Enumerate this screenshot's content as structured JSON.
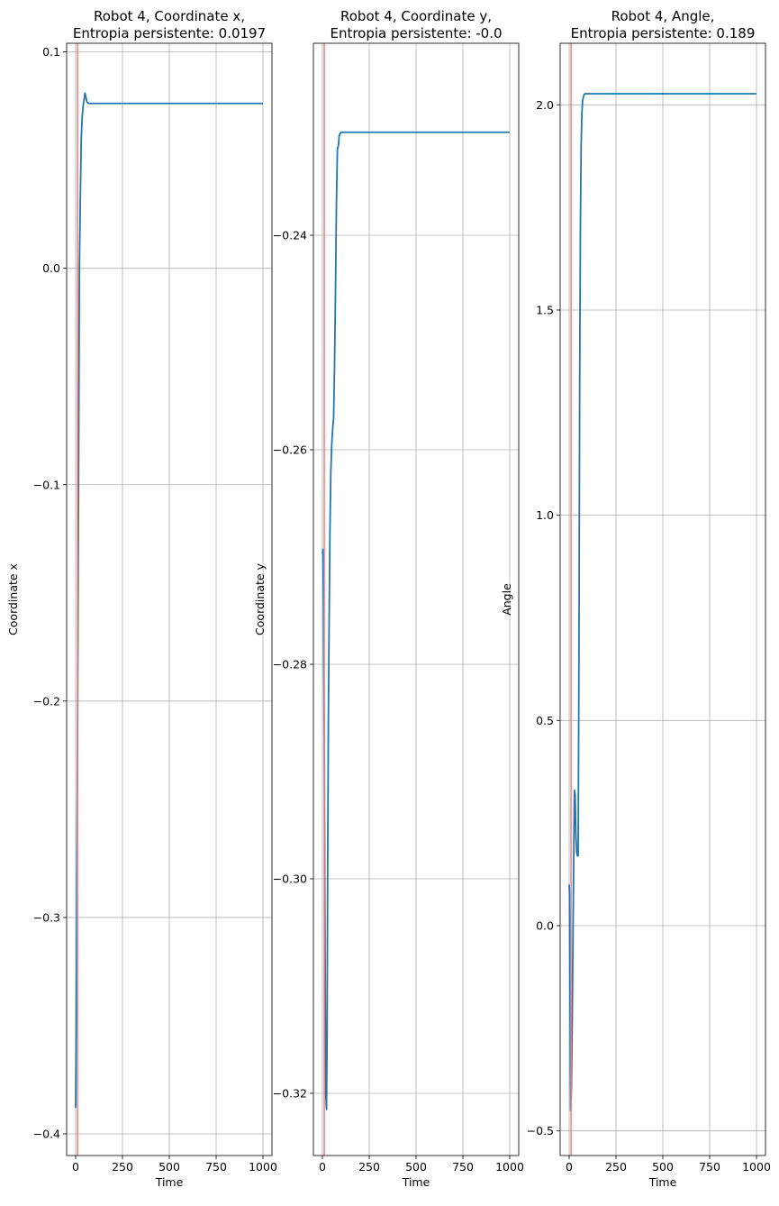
{
  "chart_data": [
    {
      "type": "line",
      "title_line1": "Robot 4, Coordinate x,",
      "title_line2": "Entropia persistente: 0.0197",
      "xlabel": "Time",
      "ylabel": "Coordinate x",
      "xlim": [
        -48,
        1048
      ],
      "ylim": [
        -0.41,
        0.104
      ],
      "xticks": [
        0,
        250,
        500,
        750,
        1000
      ],
      "xtick_labels": [
        "0",
        "250",
        "500",
        "750",
        "1000"
      ],
      "yticks": [
        -0.4,
        -0.3,
        -0.2,
        -0.1,
        0.0,
        0.1
      ],
      "ytick_labels": [
        "−0.4",
        "−0.3",
        "−0.2",
        "−0.1",
        "0.0",
        "0.1"
      ],
      "grid": true,
      "vline_x": 10,
      "line_color": "#1f77b4",
      "vline_color": "#f08080",
      "series": [
        {
          "x": [
            0,
            5,
            10,
            15,
            20,
            25,
            30,
            35,
            40,
            45,
            50,
            55,
            60,
            65,
            70,
            80,
            100,
            150,
            300,
            500,
            750,
            1000
          ],
          "y": [
            -0.388,
            -0.32,
            -0.22,
            -0.11,
            0.0,
            0.032,
            0.06,
            0.07,
            0.075,
            0.078,
            0.081,
            0.079,
            0.077,
            0.0765,
            0.0762,
            0.0762,
            0.0762,
            0.0762,
            0.0762,
            0.0762,
            0.0762,
            0.0762
          ]
        }
      ]
    },
    {
      "type": "line",
      "title_line1": "Robot 4, Coordinate y,",
      "title_line2": "Entropia persistente: -0.0",
      "xlabel": "Time",
      "ylabel": "Coordinate y",
      "xlim": [
        -48,
        1048
      ],
      "ylim": [
        -0.3258,
        -0.2221
      ],
      "xticks": [
        0,
        250,
        500,
        750,
        1000
      ],
      "xtick_labels": [
        "0",
        "250",
        "500",
        "750",
        "1000"
      ],
      "yticks": [
        -0.32,
        -0.3,
        -0.28,
        -0.26,
        -0.24
      ],
      "ytick_labels": [
        "−0.32",
        "−0.30",
        "−0.28",
        "−0.26",
        "−0.24"
      ],
      "grid": true,
      "vline_x": 10,
      "line_color": "#1f77b4",
      "vline_color": "#f08080",
      "series": [
        {
          "x": [
            0,
            3,
            6,
            10,
            14,
            18,
            22,
            25,
            28,
            32,
            36,
            40,
            45,
            50,
            55,
            60,
            65,
            70,
            75,
            80,
            85,
            90,
            95,
            100,
            110,
            150,
            300,
            500,
            750,
            1000
          ],
          "y": [
            -0.2697,
            -0.2693,
            -0.2745,
            -0.288,
            -0.305,
            -0.32,
            -0.3215,
            -0.315,
            -0.3,
            -0.285,
            -0.276,
            -0.268,
            -0.262,
            -0.2595,
            -0.258,
            -0.257,
            -0.252,
            -0.245,
            -0.237,
            -0.232,
            -0.2317,
            -0.2307,
            -0.2305,
            -0.2304,
            -0.2304,
            -0.2304,
            -0.2304,
            -0.2304,
            -0.2304,
            -0.2304
          ]
        }
      ]
    },
    {
      "type": "line",
      "title_line1": "Robot 4, Angle,",
      "title_line2": "Entropia persistente: 0.189",
      "xlabel": "Time",
      "ylabel": "Angle",
      "xlim": [
        -48,
        1048
      ],
      "ylim": [
        -0.56,
        2.15
      ],
      "xticks": [
        0,
        250,
        500,
        750,
        1000
      ],
      "xtick_labels": [
        "0",
        "250",
        "500",
        "750",
        "1000"
      ],
      "yticks": [
        -0.5,
        0.0,
        0.5,
        1.0,
        1.5,
        2.0
      ],
      "ytick_labels": [
        "−0.5",
        "0.0",
        "0.5",
        "1.0",
        "1.5",
        "2.0"
      ],
      "grid": true,
      "vline_x": 10,
      "line_color": "#1f77b4",
      "vline_color": "#f08080",
      "series": [
        {
          "x": [
            0,
            2,
            5,
            8,
            12,
            16,
            20,
            24,
            28,
            32,
            36,
            40,
            44,
            48,
            52,
            56,
            60,
            64,
            68,
            72,
            76,
            80,
            85,
            90,
            95,
            100,
            150,
            300,
            500,
            750,
            1000
          ],
          "y": [
            0.1,
            0.08,
            -0.2,
            -0.45,
            -0.4,
            -0.25,
            -0.05,
            0.15,
            0.33,
            0.32,
            0.22,
            0.18,
            0.17,
            0.17,
            0.6,
            1.3,
            1.7,
            1.9,
            1.98,
            2.01,
            2.02,
            2.025,
            2.027,
            2.027,
            2.027,
            2.027,
            2.027,
            2.027,
            2.027,
            2.027,
            2.027
          ]
        }
      ]
    }
  ]
}
